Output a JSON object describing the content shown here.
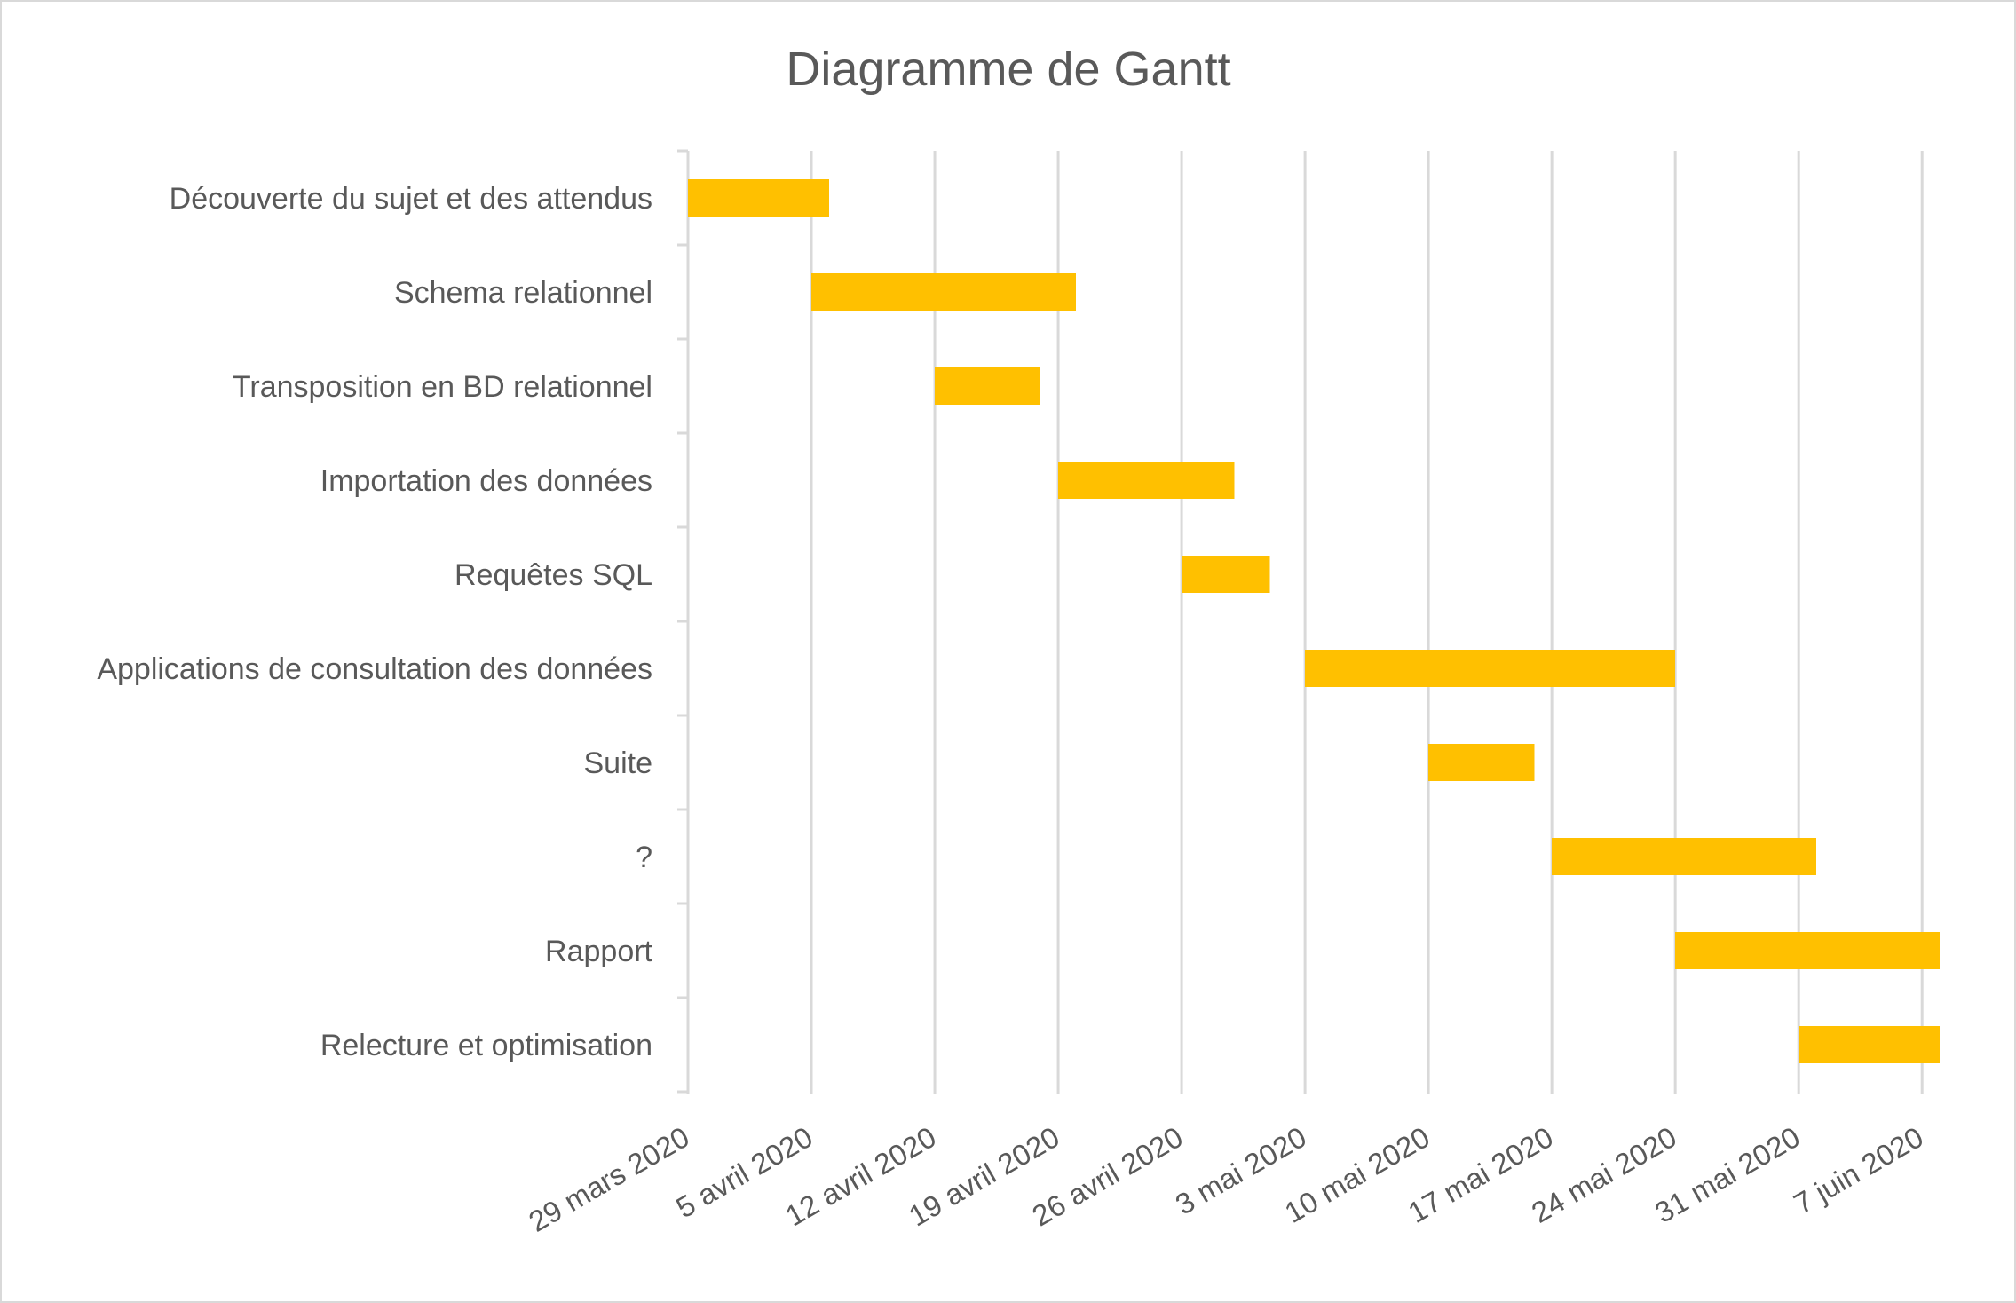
{
  "chart_data": {
    "type": "bar",
    "orientation": "horizontal",
    "title": "Diagramme de Gantt",
    "bar_color": "#FFC000",
    "grid": true,
    "legend": "none",
    "x_range": [
      "2020-03-29",
      "2020-06-11"
    ],
    "x_ticks": [
      {
        "date": "2020-03-29",
        "label": "29 mars 2020"
      },
      {
        "date": "2020-04-05",
        "label": "5 avril 2020"
      },
      {
        "date": "2020-04-12",
        "label": "12 avril 2020"
      },
      {
        "date": "2020-04-19",
        "label": "19 avril 2020"
      },
      {
        "date": "2020-04-26",
        "label": "26 avril 2020"
      },
      {
        "date": "2020-05-03",
        "label": "3 mai 2020"
      },
      {
        "date": "2020-05-10",
        "label": "10 mai 2020"
      },
      {
        "date": "2020-05-17",
        "label": "17 mai 2020"
      },
      {
        "date": "2020-05-24",
        "label": "24 mai 2020"
      },
      {
        "date": "2020-05-31",
        "label": "31 mai 2020"
      },
      {
        "date": "2020-06-07",
        "label": "7 juin 2020"
      }
    ],
    "tasks": [
      {
        "name": "Découverte du sujet et des attendus",
        "start": "2020-03-29",
        "end": "2020-04-06"
      },
      {
        "name": "Schema relationnel",
        "start": "2020-04-05",
        "end": "2020-04-20"
      },
      {
        "name": "Transposition en BD relationnel",
        "start": "2020-04-12",
        "end": "2020-04-18"
      },
      {
        "name": "Importation des données",
        "start": "2020-04-19",
        "end": "2020-04-29"
      },
      {
        "name": "Requêtes SQL",
        "start": "2020-04-26",
        "end": "2020-05-01"
      },
      {
        "name": "Applications de consultation des données",
        "start": "2020-05-03",
        "end": "2020-05-24"
      },
      {
        "name": "Suite",
        "start": "2020-05-10",
        "end": "2020-05-16"
      },
      {
        "name": "?",
        "start": "2020-05-17",
        "end": "2020-06-01"
      },
      {
        "name": "Rapport",
        "start": "2020-05-24",
        "end": "2020-06-08"
      },
      {
        "name": "Relecture et optimisation",
        "start": "2020-05-31",
        "end": "2020-06-08"
      }
    ]
  }
}
